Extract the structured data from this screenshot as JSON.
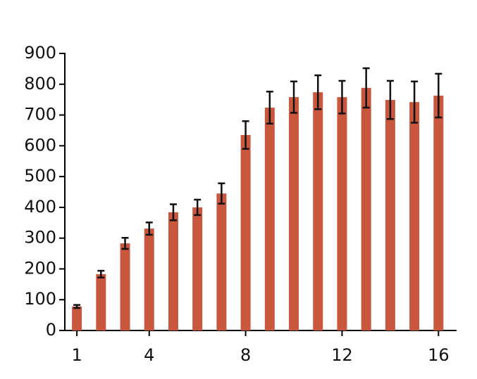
{
  "chart_data": {
    "type": "bar",
    "x": [
      1,
      2,
      3,
      4,
      5,
      6,
      7,
      8,
      9,
      10,
      11,
      12,
      13,
      14,
      15,
      16
    ],
    "values": [
      78,
      183,
      283,
      331,
      384,
      400,
      445,
      635,
      724,
      758,
      774,
      758,
      788,
      749,
      742,
      763
    ],
    "errors": [
      5,
      11,
      18,
      20,
      26,
      25,
      33,
      45,
      52,
      51,
      55,
      53,
      64,
      62,
      67,
      71
    ],
    "color": "#c8573e",
    "xlim": [
      0.5,
      16.75
    ],
    "xticks": [
      1,
      4,
      8,
      12,
      16
    ],
    "ylim": [
      0,
      900
    ],
    "yticks": [
      0,
      100,
      200,
      300,
      400,
      500,
      600,
      700,
      800,
      900
    ]
  }
}
